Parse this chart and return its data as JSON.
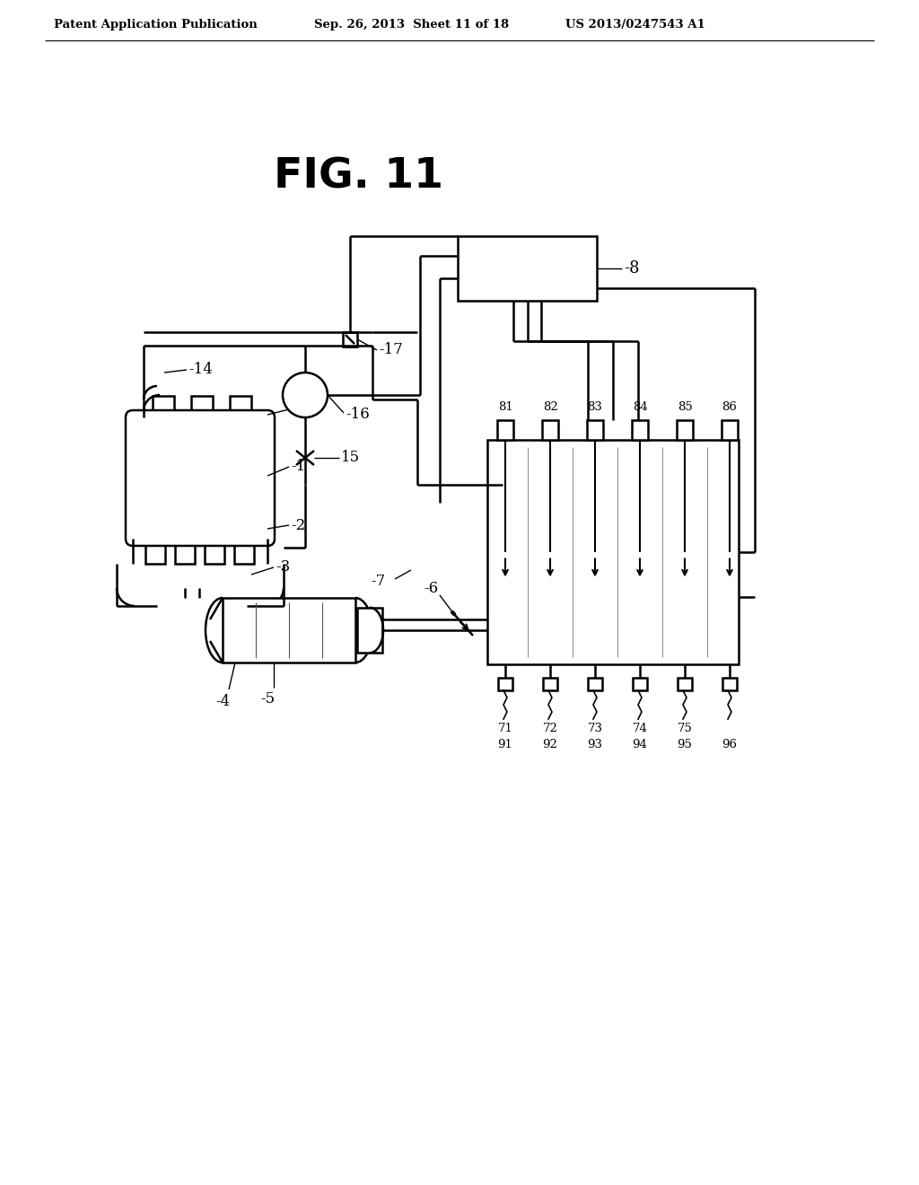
{
  "bg_color": "#ffffff",
  "header_left": "Patent Application Publication",
  "header_mid": "Sep. 26, 2013  Sheet 11 of 18",
  "header_right": "US 2013/0247543 A1",
  "fig_title": "FIG. 11",
  "lc": "#000000",
  "lw": 1.8,
  "inj_top_labels": [
    "81",
    "82",
    "83",
    "84",
    "85",
    "86"
  ],
  "inj_mid_labels": [
    "71",
    "72",
    "73",
    "74",
    "75"
  ],
  "inj_bot_labels": [
    "91",
    "92",
    "93",
    "94",
    "95",
    "96"
  ]
}
